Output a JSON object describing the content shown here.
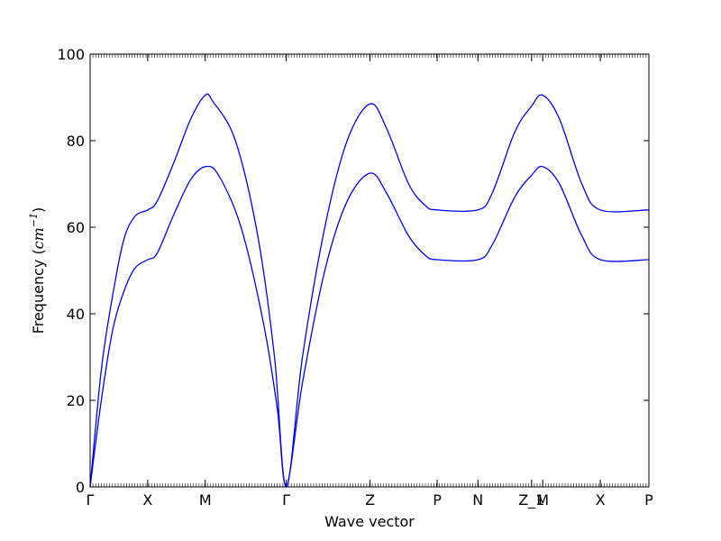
{
  "chart_data": {
    "type": "line",
    "xlabel": "Wave vector",
    "ylabel": "Frequency",
    "ylabel_unit_base": "cm",
    "ylabel_unit_exp": "−1",
    "ylim": [
      0,
      100
    ],
    "yticks": [
      0,
      20,
      40,
      60,
      80,
      100
    ],
    "xlim": [
      0,
      1
    ],
    "xticks": [
      {
        "label": "Γ",
        "x": 0.0
      },
      {
        "label": "X",
        "x": 0.103
      },
      {
        "label": "M",
        "x": 0.206
      },
      {
        "label": "Γ",
        "x": 0.351
      },
      {
        "label": "Z",
        "x": 0.501
      },
      {
        "label": "P",
        "x": 0.621
      },
      {
        "label": "N",
        "x": 0.694
      },
      {
        "label": "Z_1",
        "x": 0.79
      },
      {
        "label": "M",
        "x": 0.81
      },
      {
        "label": "X",
        "x": 0.913
      },
      {
        "label": "P",
        "x": 1.0
      }
    ],
    "grid": false,
    "line_color": "#0000ff",
    "series": [
      {
        "points": [
          [
            0.0,
            0
          ],
          [
            0.02,
            27
          ],
          [
            0.04,
            44
          ],
          [
            0.06,
            57
          ],
          [
            0.08,
            62.5
          ],
          [
            0.103,
            64
          ],
          [
            0.12,
            66
          ],
          [
            0.15,
            75
          ],
          [
            0.18,
            85
          ],
          [
            0.206,
            90.5
          ],
          [
            0.22,
            89
          ],
          [
            0.26,
            80
          ],
          [
            0.3,
            58
          ],
          [
            0.33,
            30
          ],
          [
            0.351,
            0
          ],
          [
            0.38,
            30
          ],
          [
            0.42,
            60
          ],
          [
            0.46,
            80
          ],
          [
            0.501,
            88.5
          ],
          [
            0.53,
            83
          ],
          [
            0.57,
            70
          ],
          [
            0.6,
            65
          ],
          [
            0.621,
            64
          ],
          [
            0.694,
            64
          ],
          [
            0.72,
            68
          ],
          [
            0.76,
            82
          ],
          [
            0.79,
            88
          ],
          [
            0.81,
            90.5
          ],
          [
            0.84,
            85
          ],
          [
            0.88,
            70
          ],
          [
            0.913,
            64
          ],
          [
            1.0,
            64
          ]
        ]
      },
      {
        "points": [
          [
            0.0,
            0
          ],
          [
            0.02,
            20
          ],
          [
            0.04,
            36
          ],
          [
            0.06,
            45
          ],
          [
            0.08,
            50.5
          ],
          [
            0.103,
            52.5
          ],
          [
            0.12,
            54
          ],
          [
            0.15,
            63
          ],
          [
            0.18,
            71
          ],
          [
            0.206,
            74
          ],
          [
            0.23,
            72
          ],
          [
            0.27,
            60
          ],
          [
            0.31,
            38
          ],
          [
            0.335,
            18
          ],
          [
            0.351,
            0
          ],
          [
            0.38,
            24
          ],
          [
            0.42,
            50
          ],
          [
            0.46,
            66
          ],
          [
            0.501,
            72.5
          ],
          [
            0.53,
            68
          ],
          [
            0.57,
            58
          ],
          [
            0.6,
            53.5
          ],
          [
            0.621,
            52.5
          ],
          [
            0.694,
            52.5
          ],
          [
            0.72,
            56
          ],
          [
            0.76,
            67
          ],
          [
            0.79,
            72
          ],
          [
            0.81,
            74
          ],
          [
            0.84,
            70
          ],
          [
            0.88,
            58
          ],
          [
            0.913,
            52.5
          ],
          [
            1.0,
            52.5
          ]
        ]
      }
    ]
  }
}
